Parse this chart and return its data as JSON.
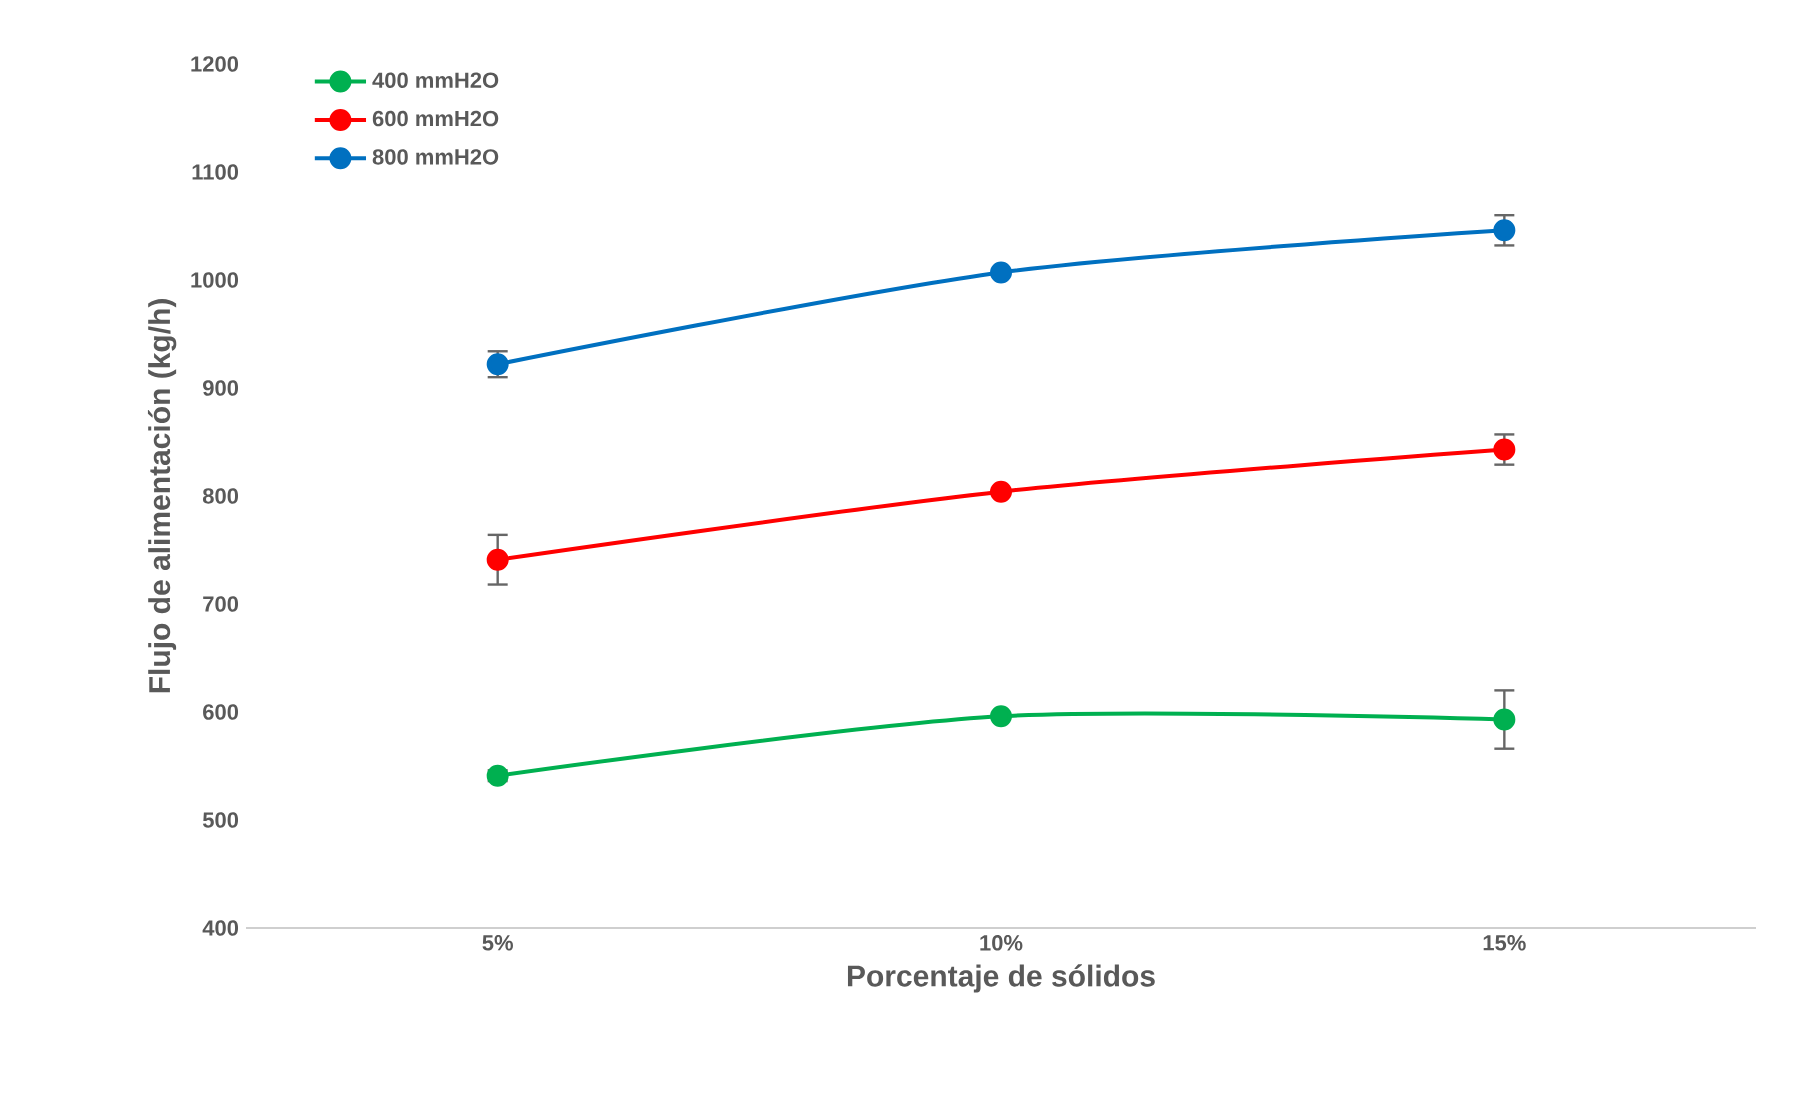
{
  "chart_data": {
    "type": "line",
    "xlabel": "Porcentaje de sólidos",
    "ylabel": "Flujo de alimentación (kg/h)",
    "categories": [
      "5%",
      "10%",
      "15%"
    ],
    "ylim": [
      400,
      1200
    ],
    "yticks": [
      400,
      500,
      600,
      700,
      800,
      900,
      1000,
      1100,
      1200
    ],
    "grid": false,
    "legend": "top left",
    "marker": "circle",
    "line_style": "solid",
    "series": [
      {
        "name": "400 mmH2O",
        "color": "#00b050",
        "values": [
          541,
          596,
          593
        ],
        "errors": [
          5,
          null,
          27
        ]
      },
      {
        "name": "600 mmH2O",
        "color": "#ff0000",
        "values": [
          741,
          804,
          843
        ],
        "errors": [
          23,
          null,
          14
        ]
      },
      {
        "name": "800 mmH2O",
        "color": "#0070c0",
        "values": [
          922,
          1007,
          1046
        ],
        "errors": [
          12,
          null,
          14
        ]
      }
    ]
  }
}
